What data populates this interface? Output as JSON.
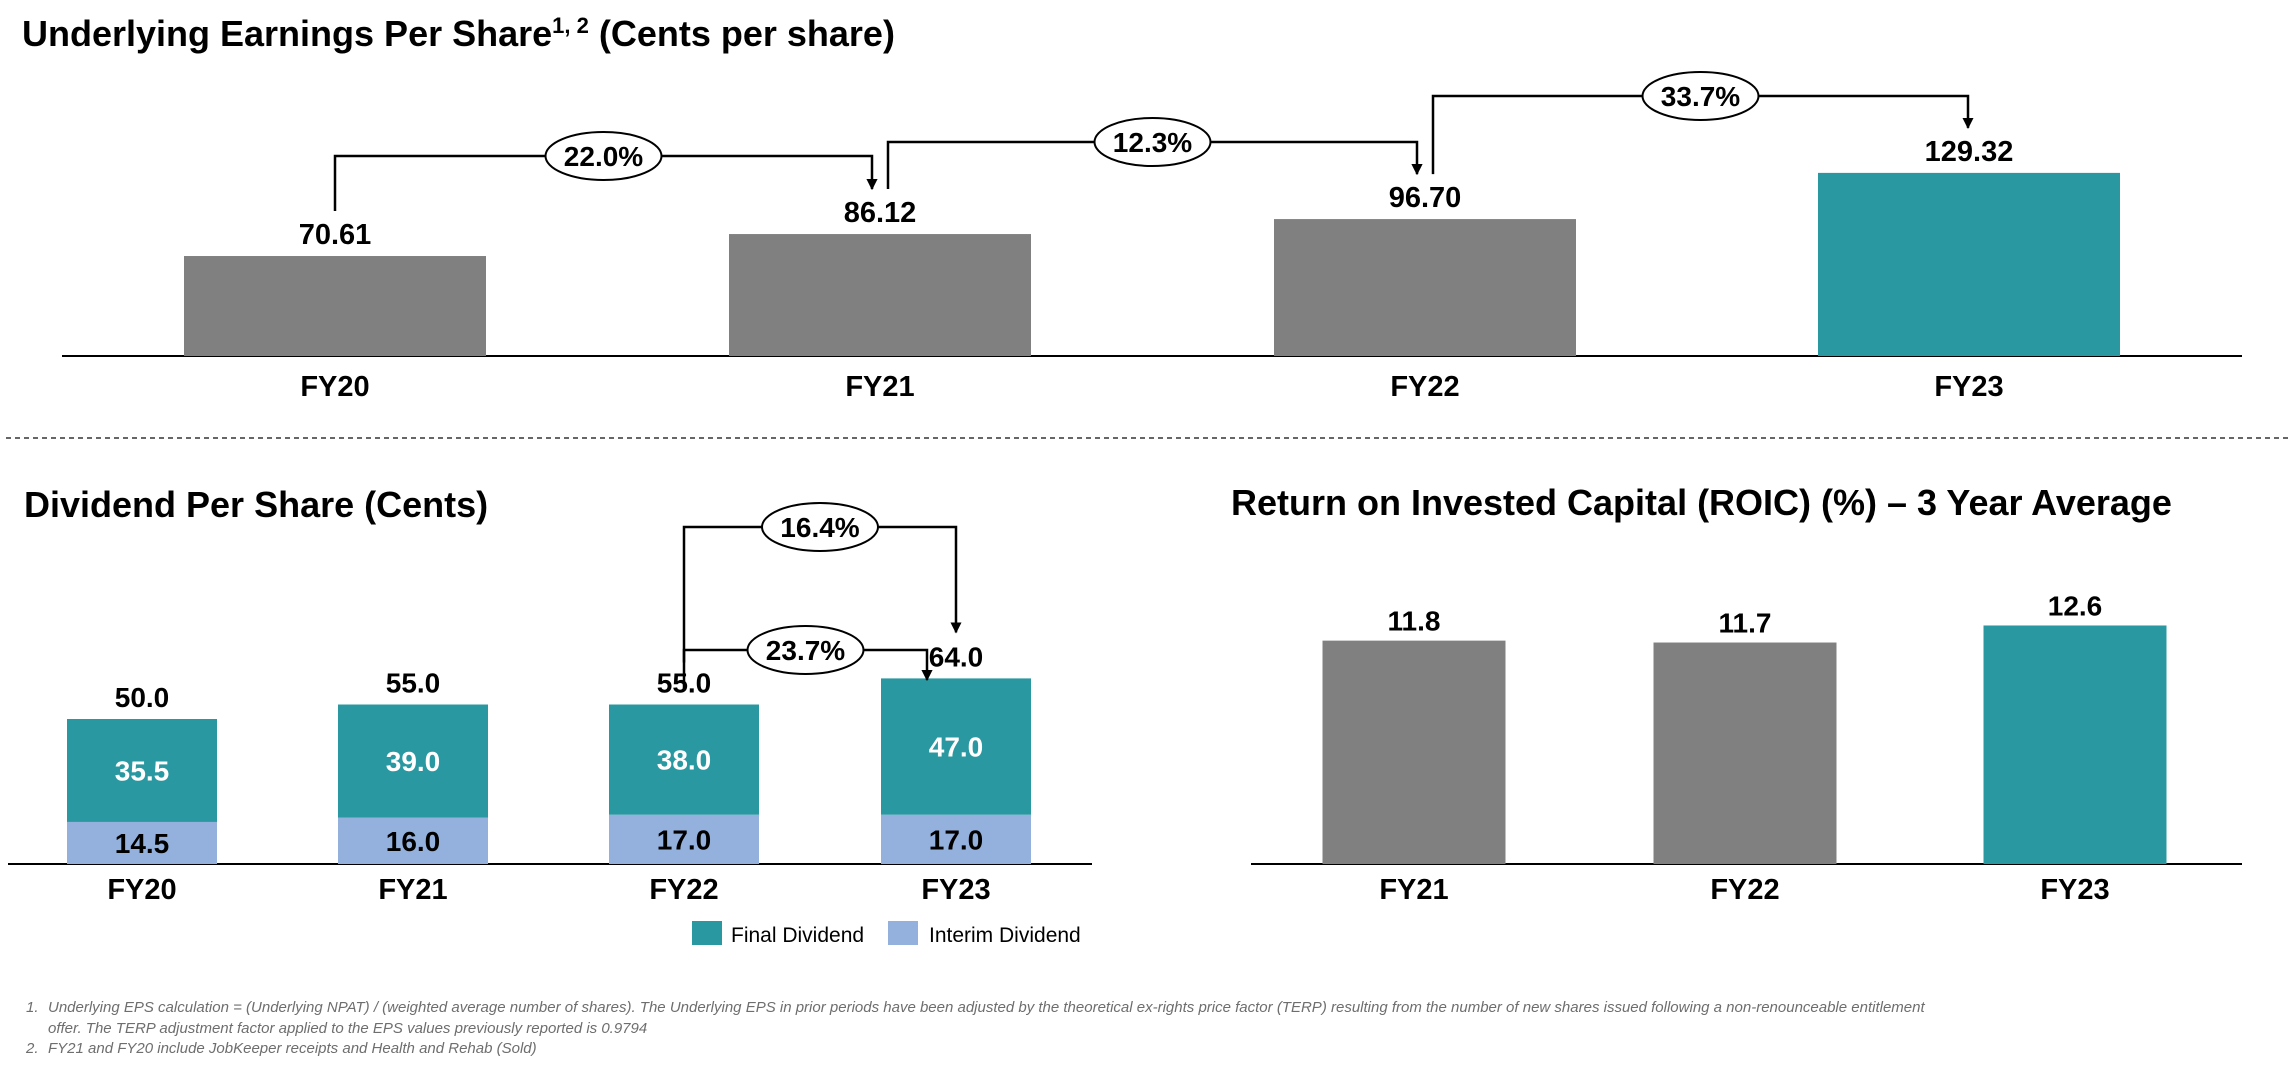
{
  "colors": {
    "grey": "#808080",
    "teal": "#2a98a0",
    "interim": "#93b1dc"
  },
  "chart_data": [
    {
      "id": "eps",
      "type": "bar",
      "title": "Underlying Earnings Per Share",
      "title_sup": "1, 2",
      "title_suffix": "(Cents per share)",
      "categories": [
        "FY20",
        "FY21",
        "FY22",
        "FY23"
      ],
      "values": [
        70.61,
        86.12,
        96.7,
        129.32
      ],
      "value_labels": [
        "70.61",
        "86.12",
        "96.70",
        "129.32"
      ],
      "highlight_last": true,
      "ylim": [
        0,
        130
      ],
      "growth": [
        "22.0%",
        "12.3%",
        "33.7%"
      ]
    },
    {
      "id": "dps",
      "type": "bar",
      "stacked": true,
      "title": "Dividend Per Share (Cents)",
      "categories": [
        "FY20",
        "FY21",
        "FY22",
        "FY23"
      ],
      "series": [
        {
          "name": "Interim Dividend",
          "values": [
            14.5,
            16.0,
            17.0,
            17.0
          ],
          "labels": [
            "14.5",
            "16.0",
            "17.0",
            "17.0"
          ]
        },
        {
          "name": "Final Dividend",
          "values": [
            35.5,
            39.0,
            38.0,
            47.0
          ],
          "labels": [
            "35.5",
            "39.0",
            "38.0",
            "47.0"
          ]
        }
      ],
      "totals": [
        "50.0",
        "55.0",
        "55.0",
        "64.0"
      ],
      "ylim": [
        0,
        65
      ],
      "growth_total": "16.4%",
      "growth_final": "23.7%",
      "legend": [
        "Final Dividend",
        "Interim Dividend"
      ]
    },
    {
      "id": "roic",
      "type": "bar",
      "title": "Return on Invested Capital (ROIC) (%) – 3 Year Average",
      "categories": [
        "FY21",
        "FY22",
        "FY23"
      ],
      "values": [
        11.8,
        11.7,
        12.6
      ],
      "value_labels": [
        "11.8",
        "11.7",
        "12.6"
      ],
      "highlight_last": true,
      "ylim": [
        0,
        13
      ]
    }
  ],
  "footnotes": [
    {
      "num": "1.",
      "lines": [
        "Underlying EPS calculation = (Underlying NPAT) / (weighted average number of shares). The Underlying EPS in prior periods have been adjusted by the theoretical ex-rights price factor (TERP) resulting from the number of new shares issued following a non-renounceable entitlement",
        "offer. The TERP adjustment factor applied to the EPS values previously reported is 0.9794"
      ]
    },
    {
      "num": "2.",
      "lines": [
        "FY21 and FY20 include JobKeeper receipts and Health and Rehab (Sold)"
      ]
    }
  ]
}
